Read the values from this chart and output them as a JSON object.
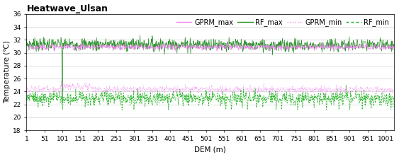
{
  "title": "Heatwave_Ulsan",
  "xlabel": "DEM (m)",
  "ylabel": "Temperature (℃)",
  "xlim": [
    1,
    1025
  ],
  "ylim": [
    18,
    36
  ],
  "xticks": [
    1,
    51,
    101,
    151,
    201,
    251,
    301,
    351,
    401,
    451,
    501,
    551,
    601,
    651,
    701,
    751,
    801,
    851,
    901,
    951,
    1001
  ],
  "yticks": [
    18,
    20,
    22,
    24,
    26,
    28,
    30,
    32,
    34,
    36
  ],
  "legend_labels": [
    "GPRM_max",
    "RF_max",
    "GPRM_min",
    "RF_min"
  ],
  "colors": {
    "GPRM_max": "#ee82ee",
    "RF_max": "#228B22",
    "GPRM_min": "#ee82ee",
    "RF_min": "#20b020"
  },
  "linestyles": {
    "GPRM_max": "solid",
    "RF_max": "solid",
    "GPRM_min": "dotted",
    "RF_min": "dashed"
  },
  "n_points": 1025,
  "rf_max_mean": 31.3,
  "rf_max_std": 0.5,
  "gprm_max_mean": 30.9,
  "gprm_max_std": 0.22,
  "rf_min_mean": 23.0,
  "rf_min_std": 0.55,
  "gprm_min_mean": 24.3,
  "gprm_min_std": 0.28,
  "title_fontsize": 9,
  "axis_fontsize": 7.5,
  "tick_fontsize": 6.5,
  "legend_fontsize": 7,
  "background_color": "#ffffff",
  "grid_color": "#d0d0d0"
}
